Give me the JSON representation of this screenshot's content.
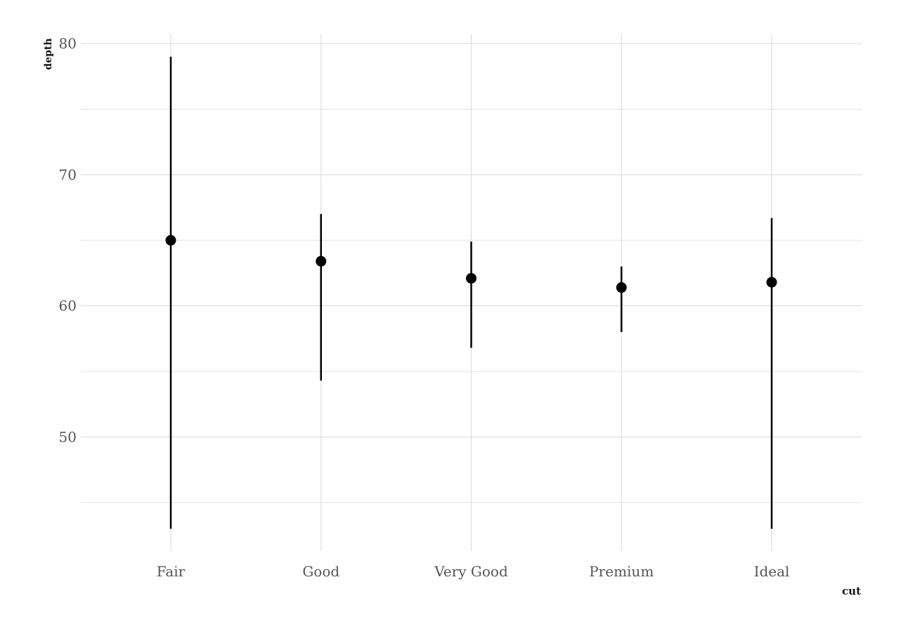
{
  "chart_data": {
    "type": "scatter",
    "subtype": "pointrange",
    "title": "",
    "xlabel": "cut",
    "ylabel": "depth",
    "categories": [
      "Fair",
      "Good",
      "Very Good",
      "Premium",
      "Ideal"
    ],
    "series": [
      {
        "values": [
          65.0,
          63.4,
          62.1,
          61.4,
          61.8
        ],
        "ymin": [
          43.0,
          54.3,
          56.8,
          58.0,
          43.0
        ],
        "ymax": [
          79.0,
          67.0,
          64.9,
          63.0,
          66.7
        ]
      }
    ],
    "ylim": [
      41.3,
      80.7
    ],
    "yticks": [
      50,
      60,
      70,
      80
    ],
    "grid": true,
    "legend": "none",
    "colors": {
      "mark": "#000000",
      "grid": "#d9d9d9",
      "tick_text": "#555555",
      "background": "#ffffff"
    }
  }
}
